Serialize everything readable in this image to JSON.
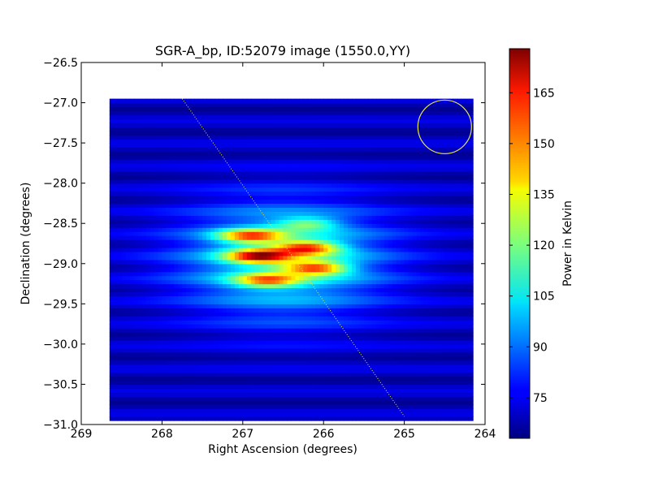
{
  "chart_data": {
    "type": "heatmap",
    "title": "SGR-A_bp, ID:52079 image (1550.0,YY)",
    "xlabel": "Right Ascension (degrees)",
    "ylabel": "Declination (degrees)",
    "xlim": [
      269,
      264
    ],
    "ylim": [
      -31.0,
      -26.5
    ],
    "x_ticks": [
      "269",
      "268",
      "267",
      "266",
      "265",
      "264"
    ],
    "y_ticks": [
      "−26.5",
      "−27.0",
      "−27.5",
      "−28.0",
      "−28.5",
      "−29.0",
      "−29.5",
      "−30.0",
      "−30.5",
      "−31.0"
    ],
    "colorbar": {
      "label": "Power in Kelvin",
      "range": [
        63,
        178
      ],
      "ticks": [
        "75",
        "90",
        "105",
        "120",
        "135",
        "150",
        "165"
      ],
      "colormap": "jet"
    },
    "data_extent": {
      "ra": [
        268.65,
        264.15
      ],
      "dec": [
        -30.95,
        -26.95
      ]
    },
    "background_level": 70,
    "peak_level": 178,
    "sources": [
      {
        "ra": 266.8,
        "dec": -28.9,
        "value": 178
      },
      {
        "ra": 266.2,
        "dec": -28.8,
        "value": 170
      },
      {
        "ra": 266.9,
        "dec": -28.65,
        "value": 168
      },
      {
        "ra": 266.1,
        "dec": -29.05,
        "value": 168
      },
      {
        "ra": 266.7,
        "dec": -29.2,
        "value": 160
      },
      {
        "ra": 266.2,
        "dec": -28.5,
        "value": 140
      }
    ],
    "galactic_plane_line": {
      "ra": [
        267.75,
        265.0
      ],
      "dec": [
        -26.95,
        -30.9
      ],
      "color": "#e6e64d"
    },
    "beam_circle": {
      "ra": 264.5,
      "dec": -27.3,
      "color": "#e6e64d"
    }
  }
}
